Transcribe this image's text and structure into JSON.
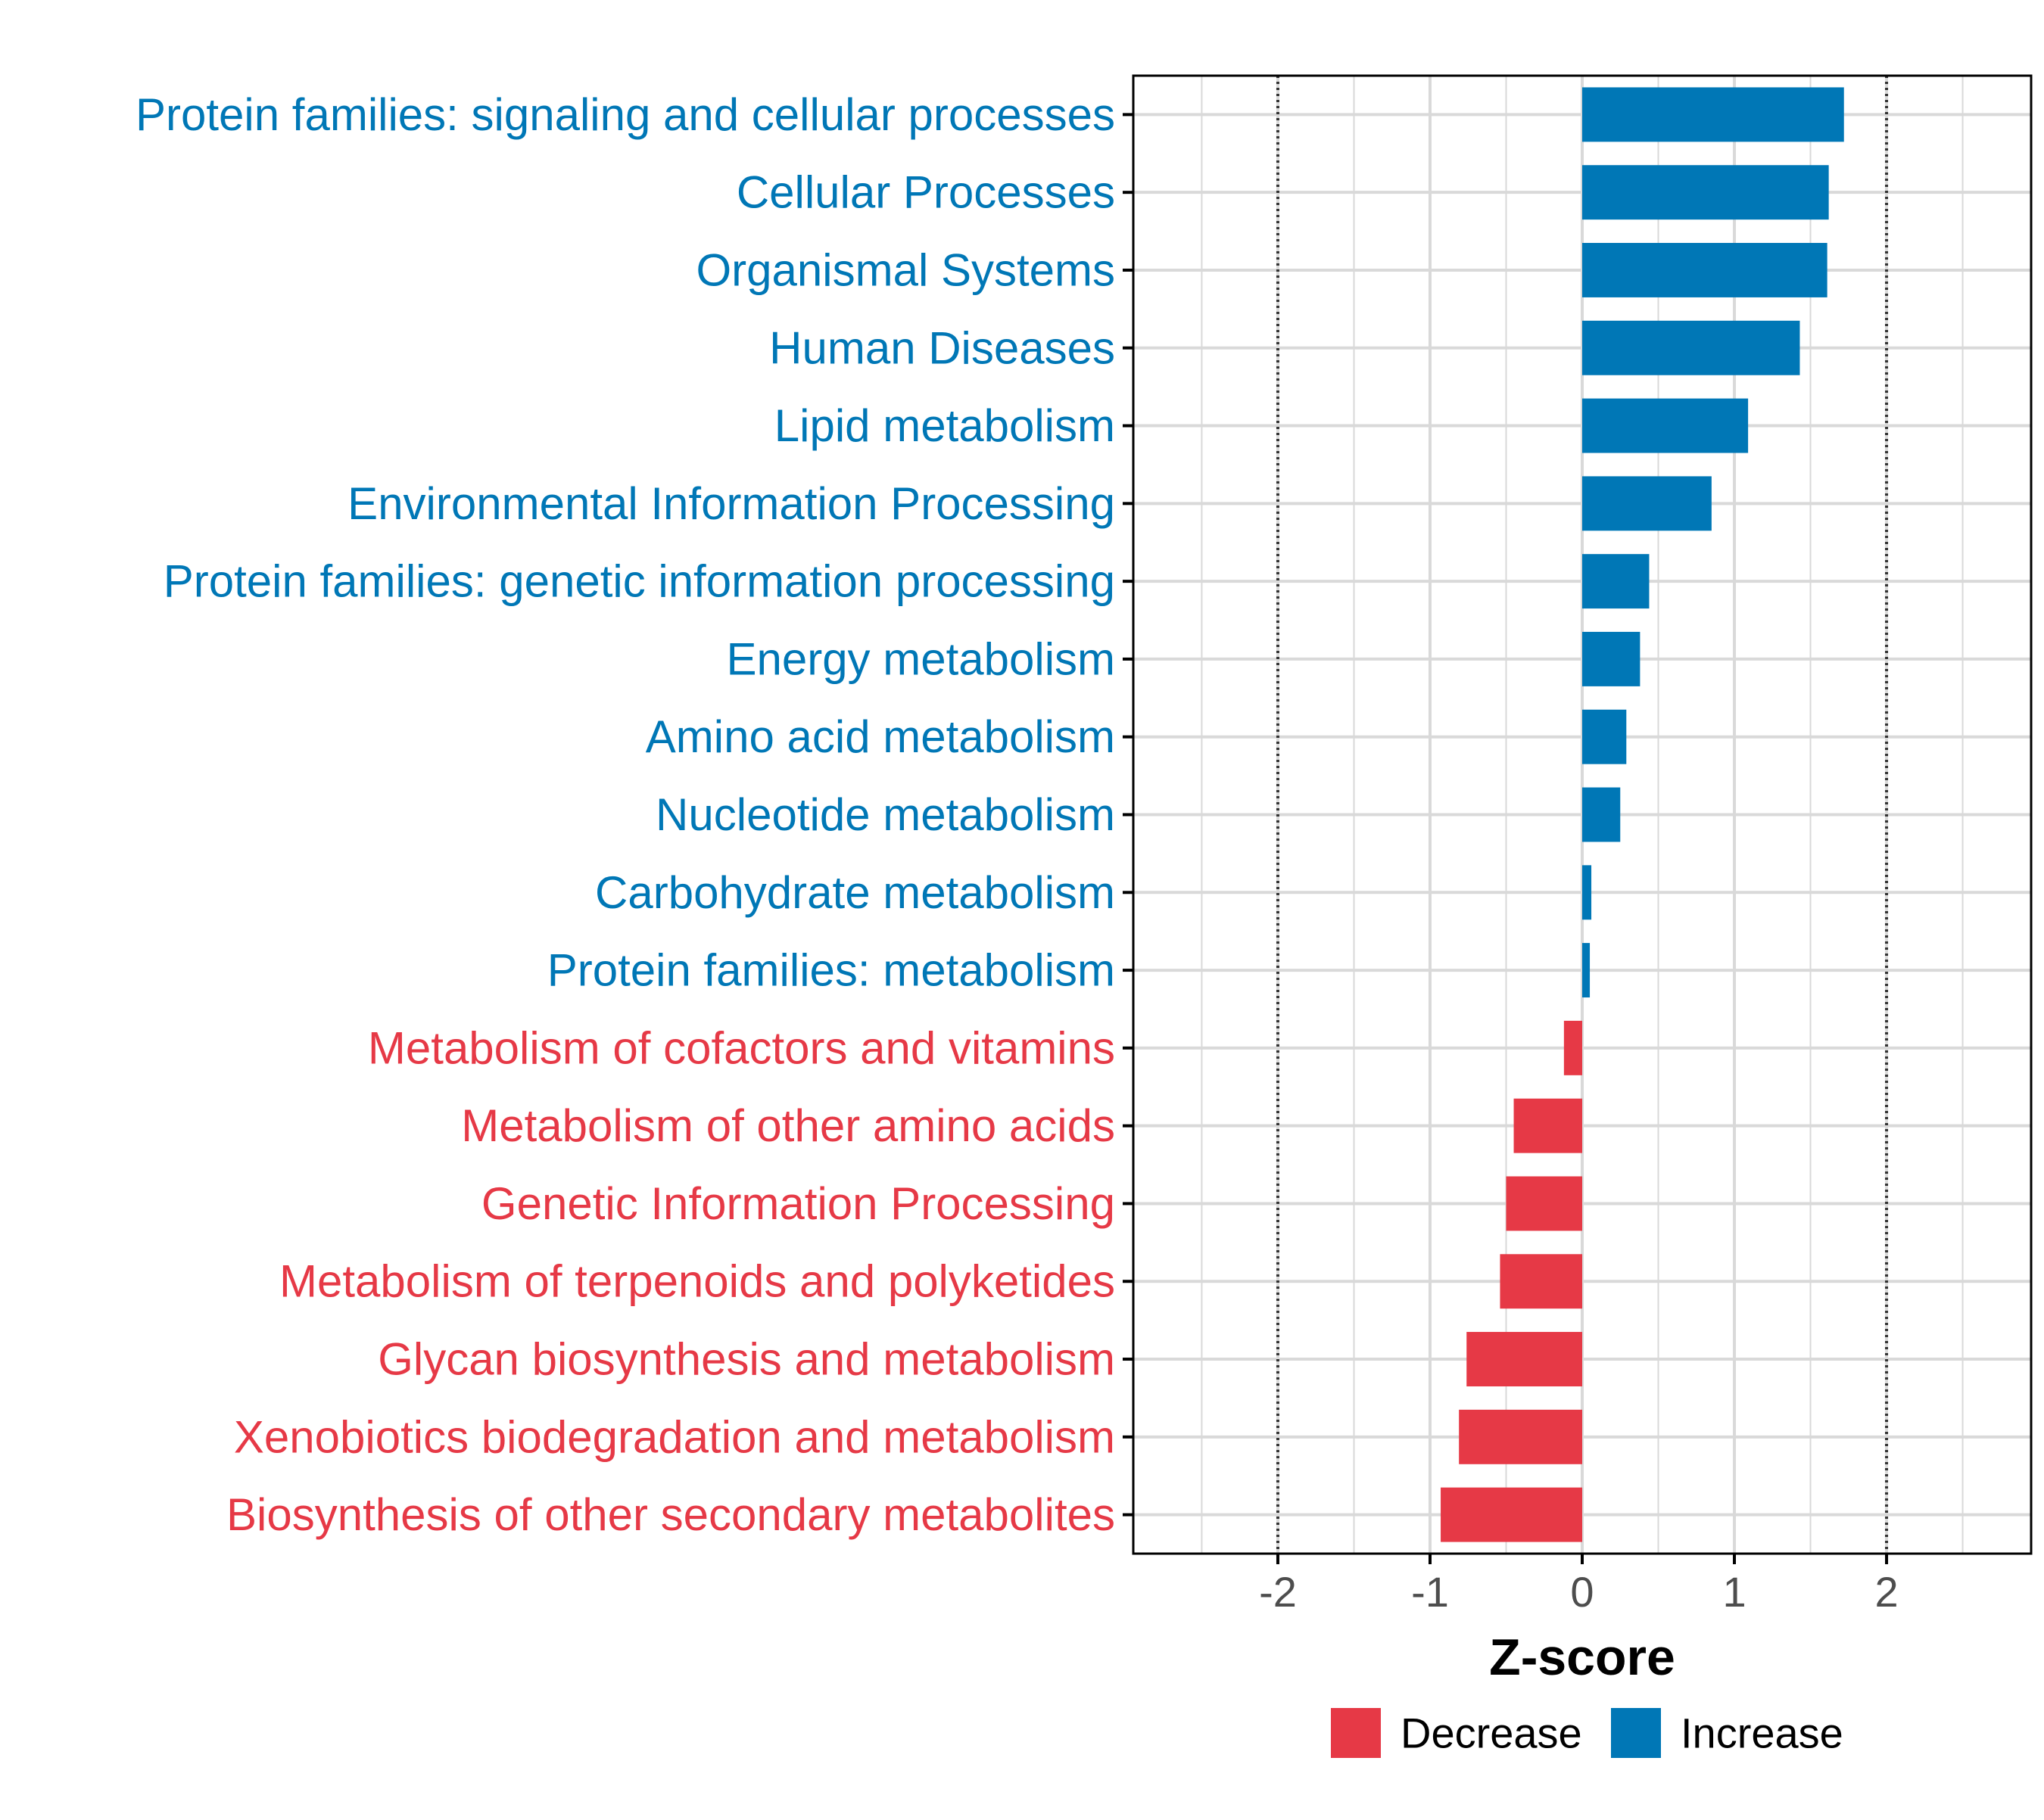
{
  "colors": {
    "decrease": "#E63946",
    "increase": "#0077B6",
    "grid": "#D9D9D9",
    "axis": "#000000",
    "tick_text": "#4D4D4D",
    "threshold": "#333333"
  },
  "chart_data": {
    "type": "bar",
    "orientation": "horizontal",
    "xlabel": "Z-score",
    "ylabel": "",
    "xlim": [
      -2.95,
      2.95
    ],
    "xticks": [
      -2,
      -1,
      0,
      1,
      2
    ],
    "xtick_labels": [
      "-2",
      "-1",
      "0",
      "1",
      "2"
    ],
    "reference_lines": [
      -2,
      2
    ],
    "grid": true,
    "categories": [
      "Protein families: signaling and cellular processes",
      "Cellular Processes",
      "Organismal Systems",
      "Human Diseases",
      "Lipid metabolism",
      "Environmental Information Processing",
      "Protein families: genetic information processing",
      "Energy metabolism",
      "Amino acid metabolism",
      "Nucleotide metabolism",
      "Carbohydrate metabolism",
      "Protein families: metabolism",
      "Metabolism of cofactors and vitamins",
      "Metabolism of other amino acids",
      "Genetic Information Processing",
      "Metabolism of terpenoids and polyketides",
      "Glycan biosynthesis and metabolism",
      "Xenobiotics biodegradation and metabolism",
      "Biosynthesis of other secondary metabolites"
    ],
    "values": [
      1.72,
      1.62,
      1.61,
      1.43,
      1.09,
      0.85,
      0.44,
      0.38,
      0.29,
      0.25,
      0.06,
      0.05,
      -0.12,
      -0.45,
      -0.5,
      -0.54,
      -0.76,
      -0.81,
      -0.93
    ],
    "groups": [
      "Increase",
      "Increase",
      "Increase",
      "Increase",
      "Increase",
      "Increase",
      "Increase",
      "Increase",
      "Increase",
      "Increase",
      "Increase",
      "Increase",
      "Decrease",
      "Decrease",
      "Decrease",
      "Decrease",
      "Decrease",
      "Decrease",
      "Decrease"
    ],
    "legend": {
      "position": "bottom",
      "entries": [
        {
          "label": "Decrease",
          "color": "#E63946"
        },
        {
          "label": "Increase",
          "color": "#0077B6"
        }
      ]
    }
  }
}
